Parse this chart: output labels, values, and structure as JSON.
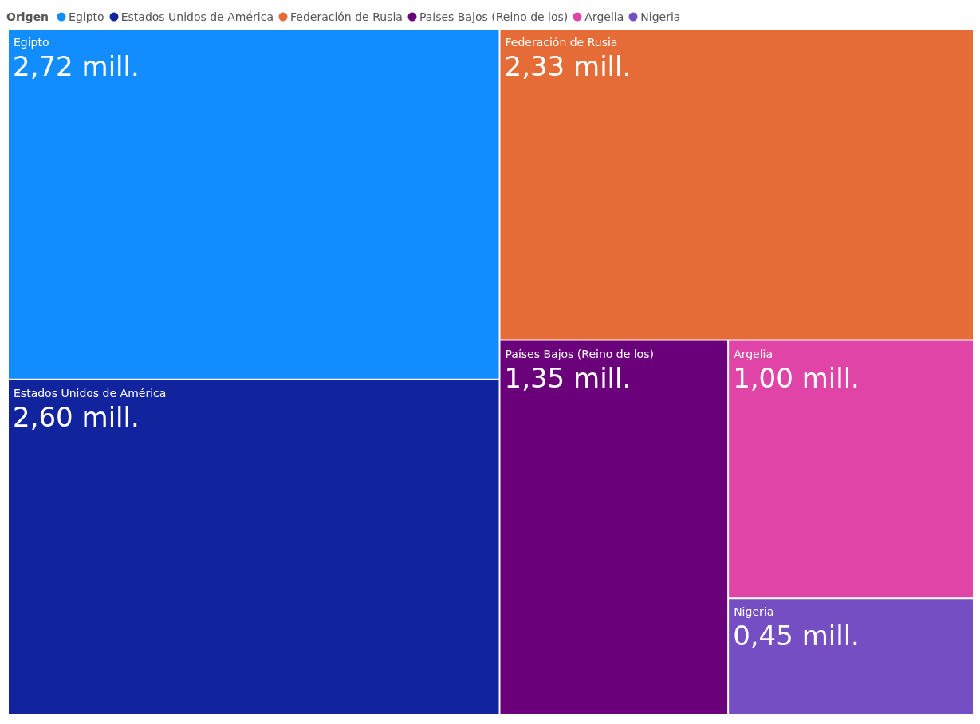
{
  "chart_data": {
    "type": "other",
    "legend_title": "Origen",
    "legend": "top left",
    "series": [
      {
        "name": "Egipto",
        "color": "#118dff",
        "values": [
          2.72
        ],
        "value_labels": [
          "2,72 mill."
        ]
      },
      {
        "name": "Estados Unidos de América",
        "color": "#12239e",
        "values": [
          2.6
        ],
        "value_labels": [
          "2,60 mill."
        ]
      },
      {
        "name": "Federación de Rusia",
        "color": "#e66c37",
        "values": [
          2.33
        ],
        "value_labels": [
          "2,33 mill."
        ]
      },
      {
        "name": "Países Bajos (Reino de los)",
        "color": "#6b007b",
        "values": [
          1.35
        ],
        "value_labels": [
          "1,35 mill."
        ]
      },
      {
        "name": "Argelia",
        "color": "#e044a7",
        "values": [
          1.0
        ],
        "value_labels": [
          "1,00 mill."
        ]
      },
      {
        "name": "Nigeria",
        "color": "#744ec2",
        "values": [
          0.45
        ],
        "value_labels": [
          "0,45 mill."
        ]
      }
    ]
  }
}
